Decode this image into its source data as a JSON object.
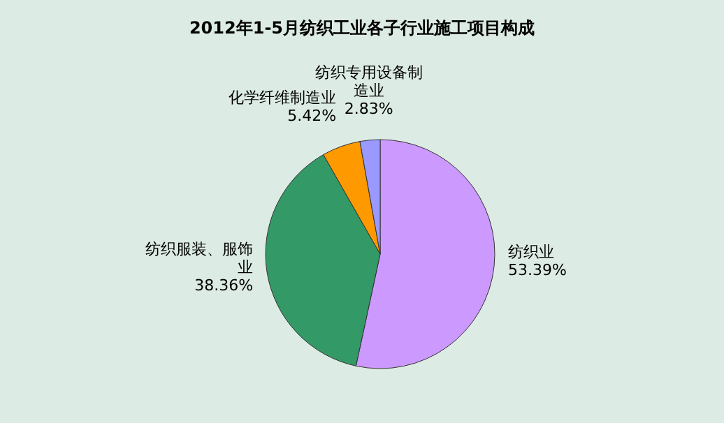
{
  "chart_data": {
    "type": "pie",
    "title": "2012年1-5月纺织工业各子行业施工项目构成",
    "categories": [
      "纺织业",
      "纺织服装、服饰业",
      "化学纤维制造业",
      "纺织专用设备制造业"
    ],
    "values": [
      53.39,
      38.36,
      5.42,
      2.83
    ],
    "colors": [
      "#cc99ff",
      "#339966",
      "#ff9900",
      "#9999ff"
    ],
    "value_labels": [
      "53.39%",
      "38.36%",
      "5.42%",
      "2.83%"
    ],
    "legend": false
  }
}
